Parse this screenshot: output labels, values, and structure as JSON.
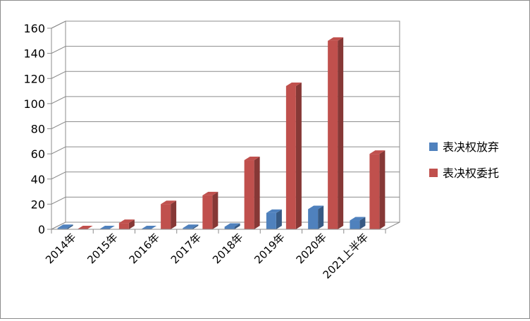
{
  "chart_data": {
    "type": "bar",
    "title": "",
    "xlabel": "",
    "ylabel": "",
    "ylim": [
      0,
      160
    ],
    "yticks": [
      0,
      20,
      40,
      60,
      80,
      100,
      120,
      140,
      160
    ],
    "grid": true,
    "legend_position": "right",
    "categories": [
      "2014年",
      "2015年",
      "2016年",
      "2017年",
      "2018年",
      "2019年",
      "2020年",
      "2021上半年"
    ],
    "series": [
      {
        "name": "表决权放弃",
        "color": "#4f81bd",
        "values": [
          1,
          0,
          0,
          1,
          2,
          13,
          16,
          7
        ]
      },
      {
        "name": "表决权委托",
        "color": "#c0504d",
        "values": [
          0,
          5,
          20,
          27,
          55,
          114,
          150,
          60
        ]
      }
    ]
  }
}
